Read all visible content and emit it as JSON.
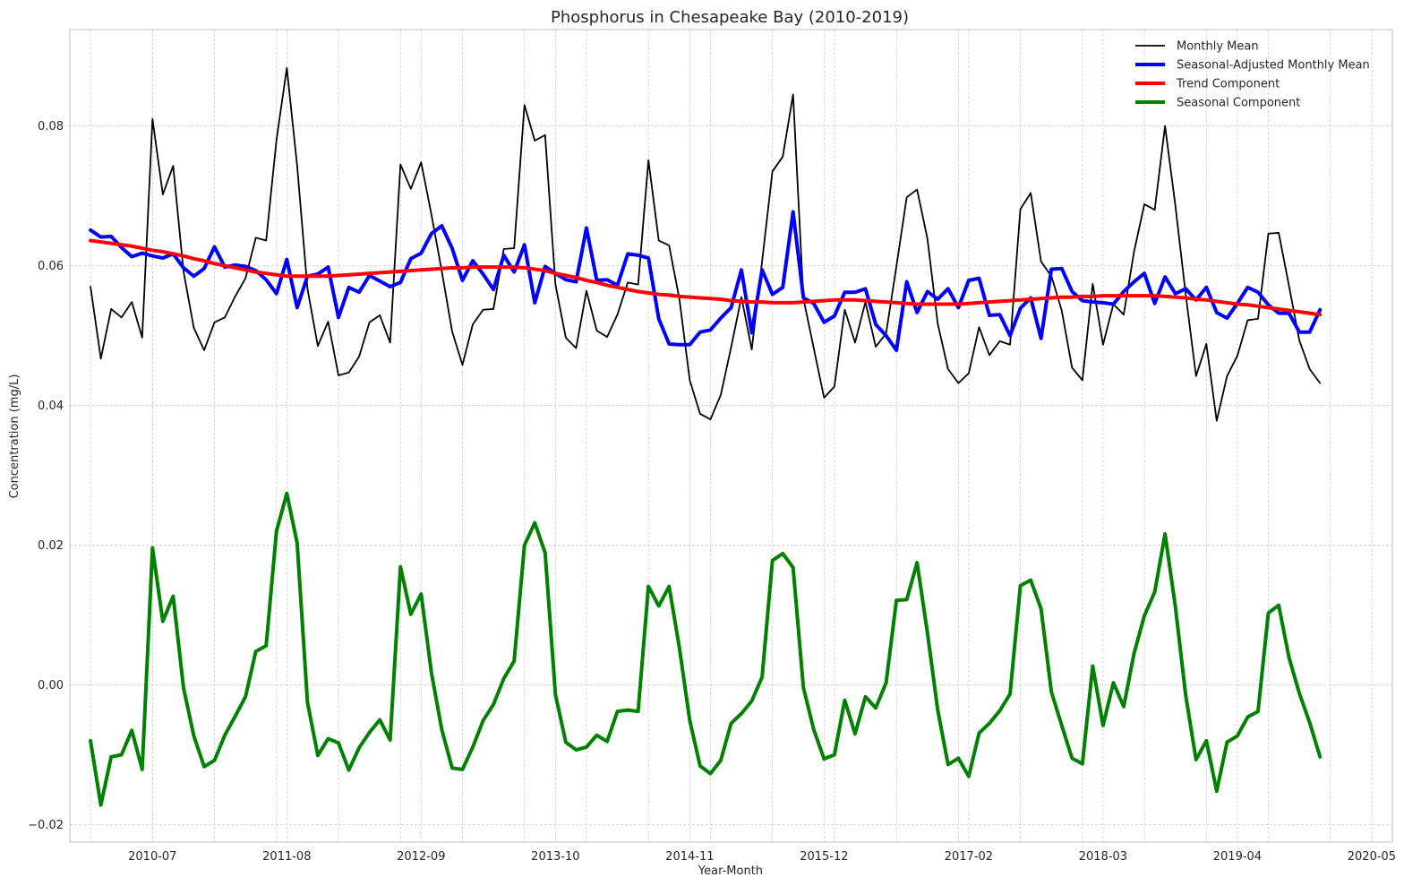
{
  "chart_data": {
    "type": "line",
    "title": "Phosphorus in Chesapeake Bay (2010-2019)",
    "xlabel": "Year-Month",
    "ylabel": "Concentration (mg/L)",
    "x_start": "2010-01",
    "x_tick_labels": [
      "2010-07",
      "2011-08",
      "2012-09",
      "2013-10",
      "2014-11",
      "2015-12",
      "2017-02",
      "2018-03",
      "2019-04",
      "2020-05"
    ],
    "xlim": [
      "2009-11",
      "2020-07"
    ],
    "y_tick_labels": [
      "−0.02",
      "0.00",
      "0.02",
      "0.04",
      "0.06",
      "0.08"
    ],
    "y_ticks": [
      -0.02,
      0.0,
      0.02,
      0.04,
      0.06,
      0.08
    ],
    "ylim": [
      -0.0225,
      0.0938
    ],
    "grid": true,
    "legend_position": "top-right",
    "series": [
      {
        "name": "Monthly Mean",
        "color": "#000000",
        "width": 1.8,
        "values": [
          0.057,
          0.0467,
          0.0538,
          0.0526,
          0.0548,
          0.0497,
          0.081,
          0.0702,
          0.0743,
          0.0592,
          0.0511,
          0.0479,
          0.0519,
          0.0526,
          0.0556,
          0.0582,
          0.064,
          0.0636,
          0.078,
          0.0883,
          0.0743,
          0.0567,
          0.0485,
          0.052,
          0.0443,
          0.0447,
          0.047,
          0.0519,
          0.0529,
          0.049,
          0.0745,
          0.071,
          0.0748,
          0.0673,
          0.0592,
          0.0506,
          0.0458,
          0.0516,
          0.0537,
          0.0538,
          0.0624,
          0.0625,
          0.083,
          0.0779,
          0.0787,
          0.0573,
          0.0497,
          0.0482,
          0.0564,
          0.0507,
          0.0498,
          0.053,
          0.0576,
          0.0573,
          0.0751,
          0.0636,
          0.0629,
          0.0552,
          0.0436,
          0.0388,
          0.038,
          0.0415,
          0.0483,
          0.0555,
          0.048,
          0.0606,
          0.0735,
          0.0756,
          0.0845,
          0.0553,
          0.0482,
          0.0411,
          0.0427,
          0.0537,
          0.049,
          0.0548,
          0.0484,
          0.0503,
          0.0599,
          0.0698,
          0.0709,
          0.0639,
          0.0517,
          0.0452,
          0.0432,
          0.0446,
          0.0512,
          0.0472,
          0.0492,
          0.0487,
          0.0681,
          0.0704,
          0.0606,
          0.0585,
          0.0536,
          0.0454,
          0.0436,
          0.0574,
          0.0487,
          0.0545,
          0.053,
          0.062,
          0.0688,
          0.068,
          0.08,
          0.0686,
          0.0559,
          0.0442,
          0.0488,
          0.0378,
          0.0442,
          0.0471,
          0.0522,
          0.0524,
          0.0646,
          0.0647,
          0.0571,
          0.0493,
          0.0452,
          0.0432
        ]
      },
      {
        "name": "Seasonal-Adjusted Monthly Mean",
        "color": "#0000ff",
        "width": 4,
        "values": [
          0.0651,
          0.0641,
          0.0642,
          0.0626,
          0.0613,
          0.0618,
          0.0614,
          0.0611,
          0.0617,
          0.0597,
          0.0585,
          0.0596,
          0.0627,
          0.0598,
          0.0601,
          0.0599,
          0.0593,
          0.058,
          0.056,
          0.0609,
          0.054,
          0.0585,
          0.0588,
          0.0598,
          0.0526,
          0.0569,
          0.0562,
          0.0586,
          0.0578,
          0.057,
          0.0576,
          0.061,
          0.0618,
          0.0646,
          0.0657,
          0.0625,
          0.0579,
          0.0607,
          0.0588,
          0.0566,
          0.0615,
          0.0591,
          0.063,
          0.0547,
          0.0599,
          0.0589,
          0.058,
          0.0577,
          0.0654,
          0.0579,
          0.058,
          0.0572,
          0.0617,
          0.0615,
          0.0611,
          0.0524,
          0.0488,
          0.0487,
          0.0487,
          0.0505,
          0.0508,
          0.0525,
          0.054,
          0.0594,
          0.0504,
          0.0594,
          0.0559,
          0.0569,
          0.0677,
          0.0554,
          0.0546,
          0.0519,
          0.0528,
          0.0562,
          0.0562,
          0.0567,
          0.0516,
          0.05,
          0.0479,
          0.0577,
          0.0533,
          0.0563,
          0.0552,
          0.0567,
          0.054,
          0.0579,
          0.0582,
          0.0529,
          0.053,
          0.05,
          0.0539,
          0.0554,
          0.0496,
          0.0595,
          0.0596,
          0.0563,
          0.055,
          0.0548,
          0.0547,
          0.0545,
          0.0563,
          0.0577,
          0.0589,
          0.0546,
          0.0584,
          0.056,
          0.0567,
          0.0551,
          0.0569,
          0.0533,
          0.0525,
          0.0546,
          0.0569,
          0.0562,
          0.0544,
          0.0532,
          0.0532,
          0.0505,
          0.0505,
          0.0537
        ]
      },
      {
        "name": "Trend Component",
        "color": "#ff0000",
        "width": 4,
        "values": [
          0.0636,
          0.0634,
          0.0632,
          0.063,
          0.0628,
          0.0625,
          0.0622,
          0.062,
          0.0617,
          0.0614,
          0.061,
          0.0607,
          0.0603,
          0.06,
          0.0597,
          0.0594,
          0.0591,
          0.0589,
          0.0587,
          0.0585,
          0.0585,
          0.0585,
          0.0585,
          0.0585,
          0.0586,
          0.0587,
          0.0588,
          0.0589,
          0.059,
          0.0591,
          0.0592,
          0.0593,
          0.0594,
          0.0595,
          0.0596,
          0.0597,
          0.0597,
          0.0598,
          0.0598,
          0.0598,
          0.0598,
          0.0598,
          0.0597,
          0.0595,
          0.0593,
          0.0589,
          0.0586,
          0.0583,
          0.0579,
          0.0576,
          0.0572,
          0.0569,
          0.0566,
          0.0563,
          0.0561,
          0.0559,
          0.0558,
          0.0556,
          0.0555,
          0.0554,
          0.0553,
          0.0552,
          0.055,
          0.0549,
          0.0548,
          0.0548,
          0.0547,
          0.0547,
          0.0547,
          0.0548,
          0.0549,
          0.055,
          0.0551,
          0.0551,
          0.0551,
          0.055,
          0.0549,
          0.0548,
          0.0547,
          0.0546,
          0.0545,
          0.0545,
          0.0545,
          0.0545,
          0.0545,
          0.0546,
          0.0547,
          0.0548,
          0.0549,
          0.055,
          0.0551,
          0.0552,
          0.0553,
          0.0554,
          0.0555,
          0.0555,
          0.0556,
          0.0556,
          0.0557,
          0.0557,
          0.0557,
          0.0557,
          0.0557,
          0.0557,
          0.0556,
          0.0555,
          0.0554,
          0.0552,
          0.0551,
          0.0549,
          0.0547,
          0.0545,
          0.0544,
          0.0542,
          0.054,
          0.0538,
          0.0536,
          0.0534,
          0.0532,
          0.053
        ]
      },
      {
        "name": "Seasonal Component",
        "color": "#008000",
        "width": 4,
        "values": [
          -0.008,
          -0.0172,
          -0.0103,
          -0.01,
          -0.0065,
          -0.0121,
          0.0196,
          0.0091,
          0.0127,
          -0.0004,
          -0.0073,
          -0.0117,
          -0.0108,
          -0.0072,
          -0.0045,
          -0.0017,
          0.0048,
          0.0056,
          0.022,
          0.0274,
          0.0203,
          -0.0025,
          -0.0101,
          -0.0077,
          -0.0083,
          -0.0122,
          -0.009,
          -0.0068,
          -0.005,
          -0.0079,
          0.0169,
          0.0101,
          0.013,
          0.0017,
          -0.0064,
          -0.0119,
          -0.0121,
          -0.0089,
          -0.0051,
          -0.0028,
          0.0009,
          0.0034,
          0.02,
          0.0232,
          0.0189,
          -0.0014,
          -0.0082,
          -0.0093,
          -0.0089,
          -0.0072,
          -0.0081,
          -0.0038,
          -0.0036,
          -0.0038,
          0.0141,
          0.0113,
          0.0141,
          0.0053,
          -0.0051,
          -0.0116,
          -0.0127,
          -0.0108,
          -0.0055,
          -0.0041,
          -0.0023,
          0.0011,
          0.0178,
          0.0188,
          0.0168,
          -0.0004,
          -0.0064,
          -0.0106,
          -0.01,
          -0.0022,
          -0.007,
          -0.0017,
          -0.0033,
          0.0003,
          0.0121,
          0.0122,
          0.0175,
          0.0075,
          -0.0036,
          -0.0114,
          -0.0105,
          -0.0131,
          -0.0069,
          -0.0055,
          -0.0037,
          -0.0013,
          0.0142,
          0.015,
          0.0109,
          -0.001,
          -0.0058,
          -0.0105,
          -0.0113,
          0.0027,
          -0.0058,
          0.0003,
          -0.0031,
          0.0045,
          0.0099,
          0.0133,
          0.0216,
          0.0112,
          -0.0015,
          -0.0107,
          -0.008,
          -0.0152,
          -0.0082,
          -0.0073,
          -0.0046,
          -0.0038,
          0.0103,
          0.0114,
          0.0039,
          -0.0012,
          -0.0054,
          -0.0103
        ]
      }
    ]
  }
}
